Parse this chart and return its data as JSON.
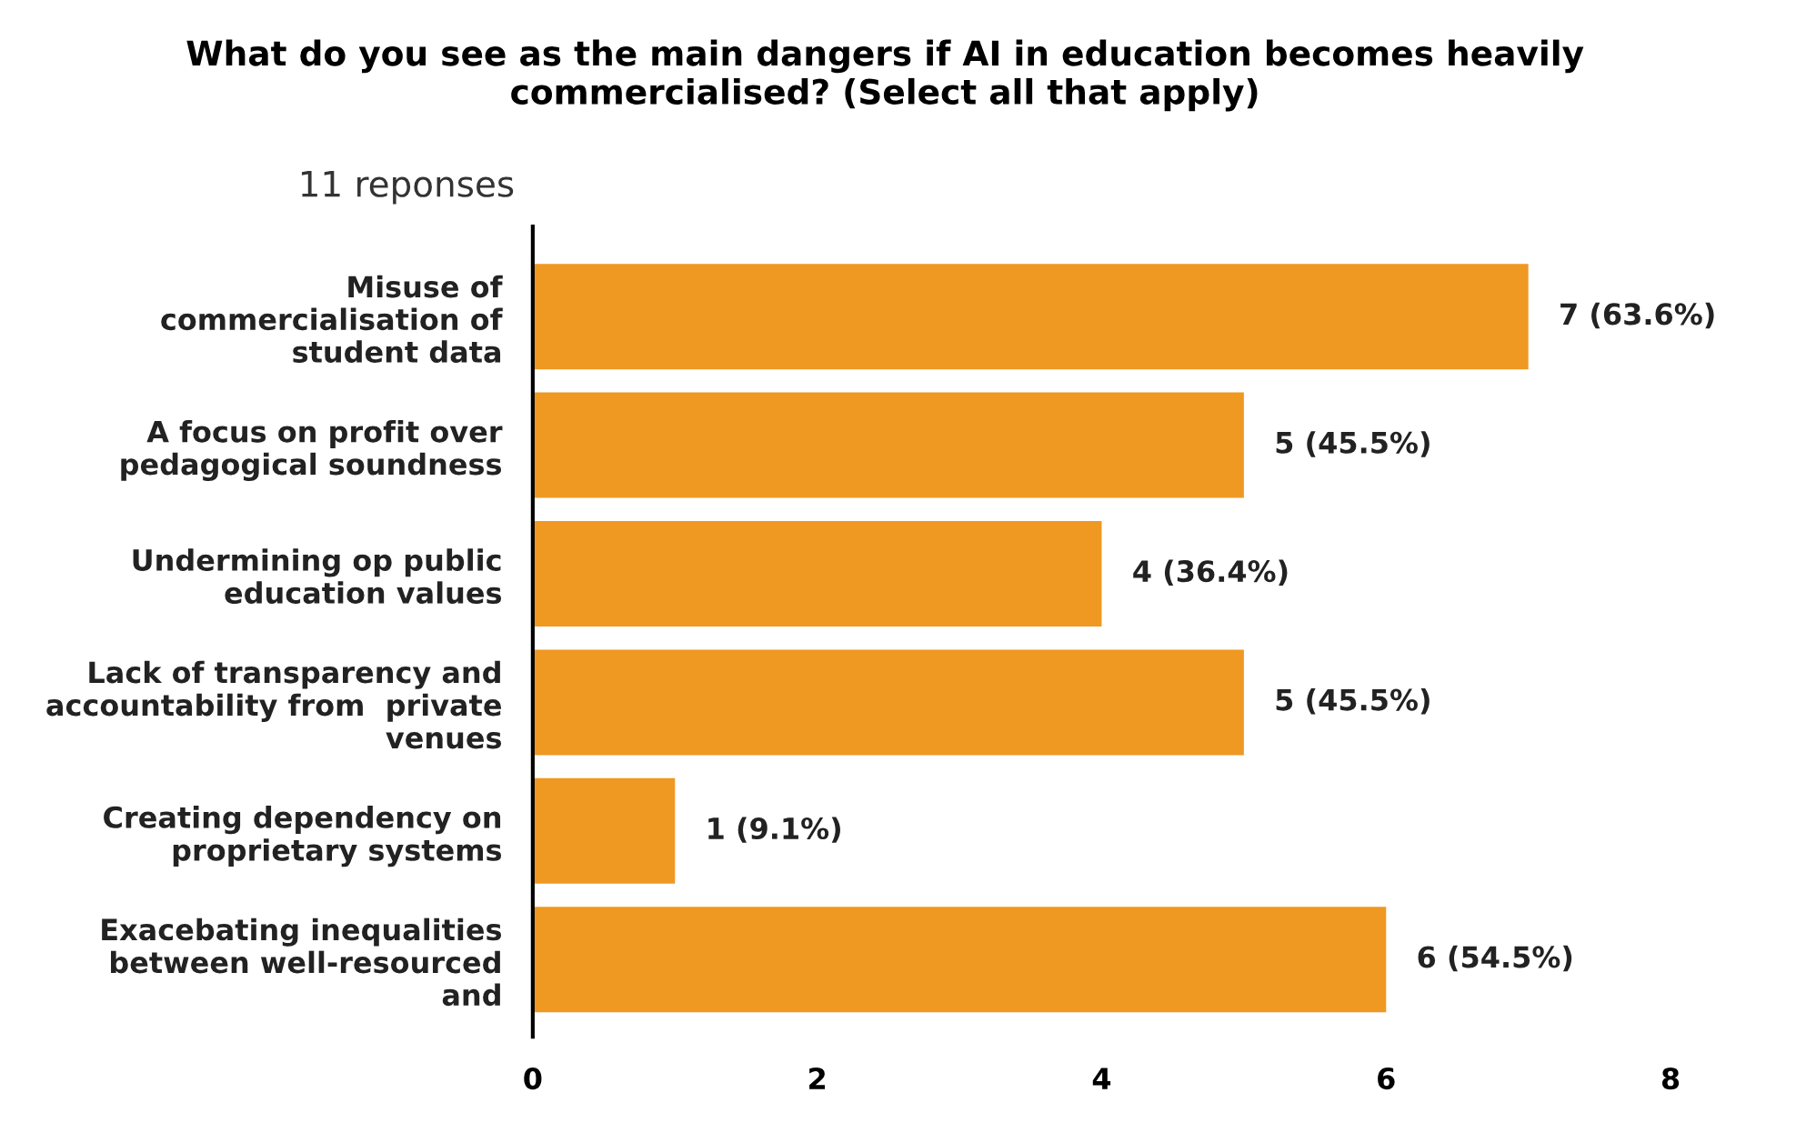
{
  "chart_data": {
    "type": "bar",
    "orientation": "horizontal",
    "title": "What do you see as the main dangers if AI in education becomes heavily\ncommercialised? (Select all that apply)",
    "subtitle": "11 reponses",
    "categories": [
      "Misuse of\ncommercialisation of\nstudent data",
      "A focus on profit over\npedagogical soundness",
      "Undermining op public\neducation values",
      "Lack of transparency and\naccountability from  private\nvenues",
      "Creating dependency on\nproprietary systems",
      "Exacebating inequalities\nbetween well-resourced\nand"
    ],
    "values": [
      7,
      5,
      4,
      5,
      1,
      6
    ],
    "value_labels": [
      "7 (63.6%)",
      "5 (45.5%)",
      "4 (36.4%)",
      "5 (45.5%)",
      "1 (9.1%)",
      "6 (54.5%)"
    ],
    "color": "#ef9822",
    "xlim": [
      0,
      8
    ],
    "xticks": [
      0,
      2,
      4,
      6,
      8
    ],
    "grid": false,
    "legend": false
  }
}
